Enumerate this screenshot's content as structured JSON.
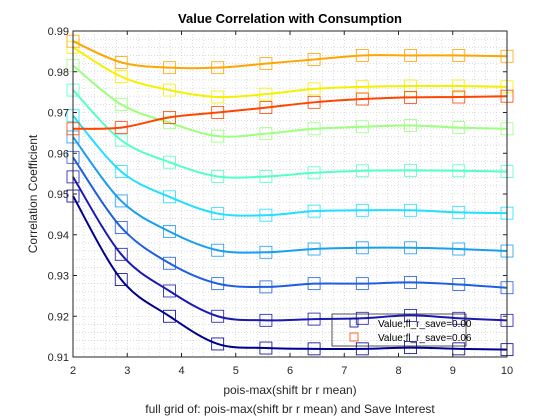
{
  "chart_data": {
    "type": "line",
    "title": "Value Correlation with Consumption",
    "xlabel": "pois-max(shift br r mean)",
    "xlabel2": "full grid of: pois-max(shift br r mean) and Save Interest",
    "ylabel": "Correlation Coefficient",
    "xlim": [
      2,
      10
    ],
    "ylim": [
      0.91,
      0.99
    ],
    "xticks": [
      2,
      3,
      4,
      5,
      6,
      7,
      8,
      9,
      10
    ],
    "yticks": [
      0.91,
      0.92,
      0.93,
      0.94,
      0.95,
      0.96,
      0.97,
      0.98,
      0.99
    ],
    "grid": "minor dotted",
    "legend_position": "bottom-right",
    "marker": "square",
    "x": [
      2.0,
      2.889,
      3.778,
      4.667,
      5.556,
      6.444,
      7.333,
      8.222,
      9.111,
      10.0
    ],
    "series": [
      {
        "name": "Value;fl_r_save=0.00",
        "color": "#00008f",
        "values": [
          0.9495,
          0.929,
          0.92,
          0.9132,
          0.9122,
          0.912,
          0.912,
          0.9123,
          0.912,
          0.9118
        ]
      },
      {
        "name": "",
        "color": "#1a1ab0",
        "values": [
          0.9542,
          0.9352,
          0.9262,
          0.92,
          0.919,
          0.9193,
          0.9195,
          0.9202,
          0.9195,
          0.919
        ]
      },
      {
        "name": "",
        "color": "#1e5fe0",
        "values": [
          0.959,
          0.9418,
          0.933,
          0.928,
          0.9272,
          0.928,
          0.928,
          0.9283,
          0.9278,
          0.927
        ]
      },
      {
        "name": "",
        "color": "#1a9ff0",
        "values": [
          0.964,
          0.9483,
          0.9408,
          0.9362,
          0.9357,
          0.9365,
          0.9368,
          0.9368,
          0.9365,
          0.936
        ]
      },
      {
        "name": "",
        "color": "#22dfff",
        "values": [
          0.9692,
          0.9555,
          0.9493,
          0.9452,
          0.9448,
          0.9458,
          0.946,
          0.946,
          0.9455,
          0.9453
        ]
      },
      {
        "name": "",
        "color": "#55ffc8",
        "values": [
          0.9755,
          0.9632,
          0.9578,
          0.9543,
          0.9543,
          0.9552,
          0.9557,
          0.9558,
          0.9557,
          0.9555
        ]
      },
      {
        "name": "",
        "color": "#9cff7e",
        "values": [
          0.9815,
          0.972,
          0.9675,
          0.9642,
          0.9648,
          0.966,
          0.9665,
          0.9668,
          0.9663,
          0.966
        ]
      },
      {
        "name": "",
        "color": "#f6f000",
        "values": [
          0.986,
          0.9788,
          0.9755,
          0.9738,
          0.9745,
          0.9758,
          0.9763,
          0.9765,
          0.9765,
          0.9763
        ]
      },
      {
        "name": "",
        "color": "#ffa500",
        "values": [
          0.9875,
          0.9823,
          0.981,
          0.981,
          0.982,
          0.983,
          0.984,
          0.984,
          0.984,
          0.9838
        ]
      },
      {
        "name": "Value;fl_r_save=0.06",
        "color": "#ff4500",
        "values": [
          0.966,
          0.9663,
          0.9688,
          0.97,
          0.9712,
          0.9725,
          0.9733,
          0.9737,
          0.9738,
          0.974
        ]
      }
    ]
  }
}
